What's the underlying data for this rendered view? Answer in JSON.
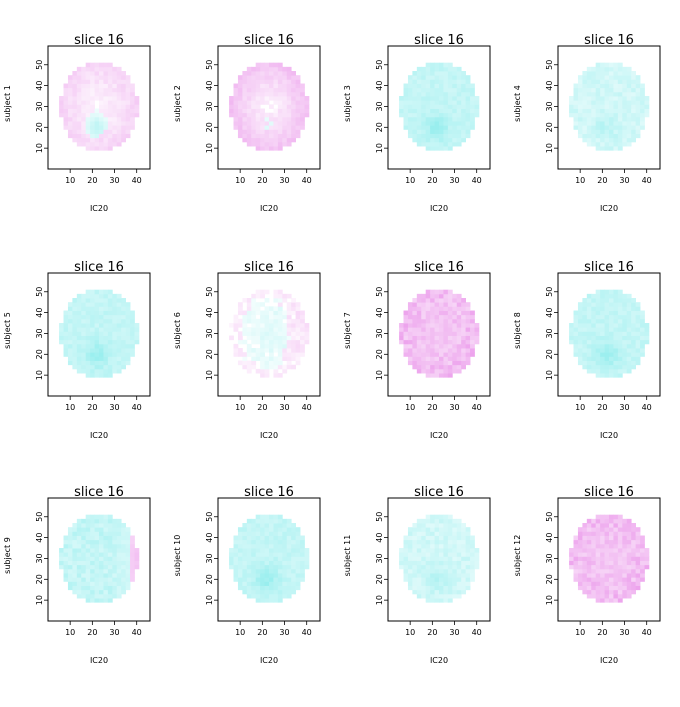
{
  "chart_data": {
    "type": "heatmap",
    "layout": {
      "rows": 3,
      "cols": 4
    },
    "xlim": [
      0,
      46
    ],
    "ylim": [
      0,
      59
    ],
    "x_ticks": [
      10,
      20,
      30,
      40
    ],
    "y_ticks": [
      10,
      20,
      30,
      40,
      50
    ],
    "xlabel": "IC20",
    "colors": {
      "positive": "#e680e6",
      "negative": "#66e6e6",
      "frame": "#000000"
    },
    "panels": [
      {
        "title": "slice 16",
        "ylabel": "subject 1",
        "pattern": "mixed-cyan-center"
      },
      {
        "title": "slice 16",
        "ylabel": "subject 2",
        "pattern": "magenta-rim"
      },
      {
        "title": "slice 16",
        "ylabel": "subject 3",
        "pattern": "cyan-dominant"
      },
      {
        "title": "slice 16",
        "ylabel": "subject 4",
        "pattern": "cyan-faint"
      },
      {
        "title": "slice 16",
        "ylabel": "subject 5",
        "pattern": "cyan-dominant"
      },
      {
        "title": "slice 16",
        "ylabel": "subject 6",
        "pattern": "faint-mixed"
      },
      {
        "title": "slice 16",
        "ylabel": "subject 7",
        "pattern": "magenta-dominant"
      },
      {
        "title": "slice 16",
        "ylabel": "subject 8",
        "pattern": "cyan-dominant"
      },
      {
        "title": "slice 16",
        "ylabel": "subject 9",
        "pattern": "cyan-magenta-right"
      },
      {
        "title": "slice 16",
        "ylabel": "subject 10",
        "pattern": "cyan-dominant"
      },
      {
        "title": "slice 16",
        "ylabel": "subject 11",
        "pattern": "cyan-faint"
      },
      {
        "title": "slice 16",
        "ylabel": "subject 12",
        "pattern": "magenta-dominant"
      }
    ]
  }
}
